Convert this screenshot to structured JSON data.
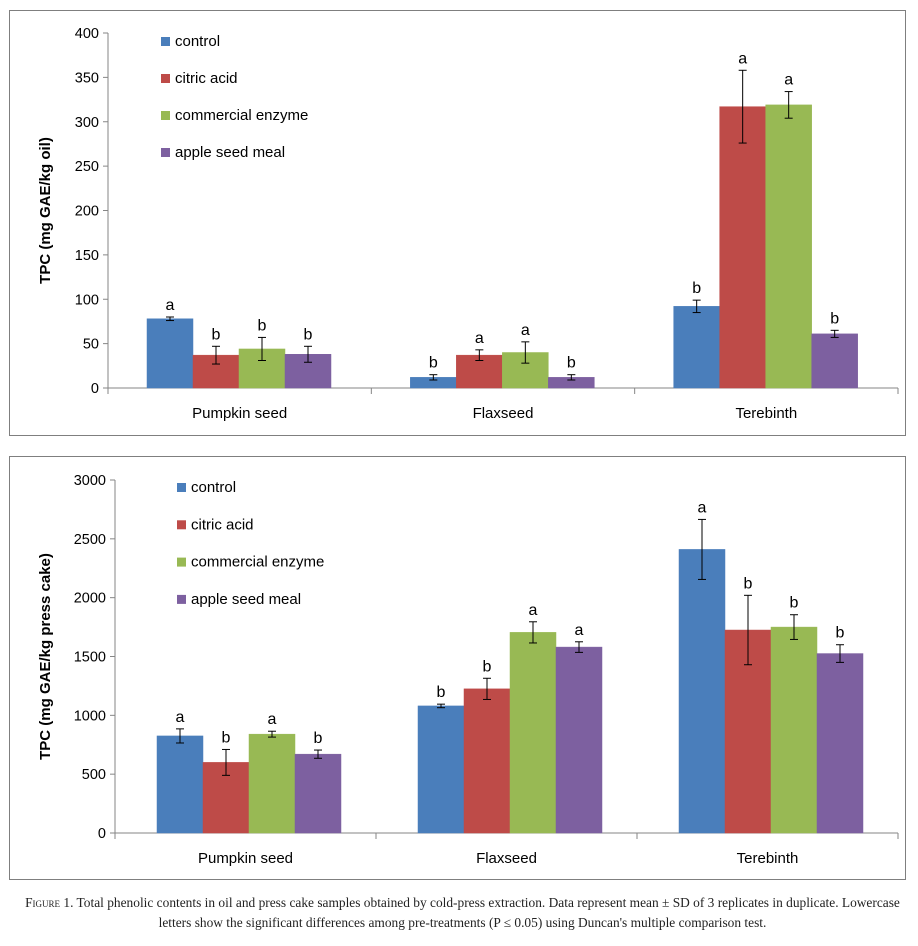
{
  "colors": {
    "control": "#4a7ebb",
    "citric acid": "#be4b48",
    "commercial enzyme": "#98b954",
    "apple seed meal": "#7d60a0",
    "axis": "#868686",
    "text": "#000000"
  },
  "chart_data": [
    {
      "type": "bar",
      "ylabel": "TPC (mg GAE/kg oil)",
      "ylim": [
        0,
        400
      ],
      "yticks": [
        0,
        50,
        100,
        150,
        200,
        250,
        300,
        350,
        400
      ],
      "legend_position": "top-left",
      "grid": false,
      "categories": [
        "Pumpkin seed",
        "Flaxseed",
        "Terebinth"
      ],
      "series": [
        {
          "name": "control",
          "values": [
            78,
            12,
            92
          ],
          "errors": [
            2,
            3,
            7
          ],
          "letters": [
            "a",
            "b",
            "b"
          ]
        },
        {
          "name": "citric acid",
          "values": [
            37,
            37,
            317
          ],
          "errors": [
            10,
            6,
            41
          ],
          "letters": [
            "b",
            "a",
            "a"
          ]
        },
        {
          "name": "commercial enzyme",
          "values": [
            44,
            40,
            319
          ],
          "errors": [
            13,
            12,
            15
          ],
          "letters": [
            "b",
            "a",
            "a"
          ]
        },
        {
          "name": "apple seed meal",
          "values": [
            38,
            12,
            61
          ],
          "errors": [
            9,
            3,
            4
          ],
          "letters": [
            "b",
            "b",
            "b"
          ]
        }
      ]
    },
    {
      "type": "bar",
      "ylabel": "TPC (mg GAE/kg press cake)",
      "ylim": [
        0,
        3000
      ],
      "yticks": [
        0,
        500,
        1000,
        1500,
        2000,
        2500,
        3000
      ],
      "legend_position": "top-left",
      "grid": false,
      "categories": [
        "Pumpkin seed",
        "Flaxseed",
        "Terebinth"
      ],
      "series": [
        {
          "name": "control",
          "values": [
            825,
            1080,
            2410
          ],
          "errors": [
            60,
            15,
            255
          ],
          "letters": [
            "a",
            "b",
            "a"
          ]
        },
        {
          "name": "citric acid",
          "values": [
            600,
            1225,
            1725
          ],
          "errors": [
            110,
            90,
            295
          ],
          "letters": [
            "b",
            "b",
            "b"
          ]
        },
        {
          "name": "commercial enzyme",
          "values": [
            840,
            1705,
            1750
          ],
          "errors": [
            25,
            90,
            105
          ],
          "letters": [
            "a",
            "a",
            "b"
          ]
        },
        {
          "name": "apple seed meal",
          "values": [
            670,
            1580,
            1525
          ],
          "errors": [
            35,
            45,
            75
          ],
          "letters": [
            "b",
            "a",
            "b"
          ]
        }
      ]
    }
  ],
  "caption": {
    "figure_label": "Figure 1.",
    "text": "Total phenolic contents in oil and press cake samples obtained by cold-press extraction. Data represent mean ± SD of 3 replicates in duplicate. Lowercase letters show the significant differences among pre-treatments (P ≤ 0.05) using Duncan's multiple comparison test."
  }
}
